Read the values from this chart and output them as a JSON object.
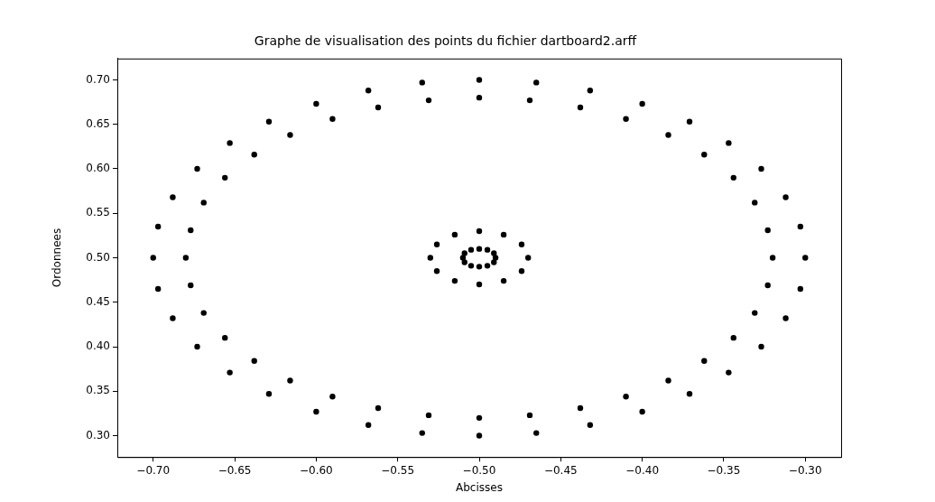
{
  "chart_data": {
    "type": "scatter",
    "title": "Graphe de visualisation des points du fichier dartboard2.arff",
    "xlabel": "Abcisses",
    "ylabel": "Ordonnees",
    "xlim": [
      -0.722,
      -0.278
    ],
    "ylim": [
      0.276,
      0.724
    ],
    "xticks": [
      {
        "value": -0.7,
        "label": "−0.70"
      },
      {
        "value": -0.65,
        "label": "−0.65"
      },
      {
        "value": -0.6,
        "label": "−0.60"
      },
      {
        "value": -0.55,
        "label": "−0.55"
      },
      {
        "value": -0.5,
        "label": "−0.50"
      },
      {
        "value": -0.45,
        "label": "−0.45"
      },
      {
        "value": -0.4,
        "label": "−0.40"
      },
      {
        "value": -0.35,
        "label": "−0.35"
      },
      {
        "value": -0.3,
        "label": "−0.30"
      }
    ],
    "yticks": [
      {
        "value": 0.3,
        "label": "0.30"
      },
      {
        "value": 0.35,
        "label": "0.35"
      },
      {
        "value": 0.4,
        "label": "0.40"
      },
      {
        "value": 0.45,
        "label": "0.45"
      },
      {
        "value": 0.5,
        "label": "0.50"
      },
      {
        "value": 0.55,
        "label": "0.55"
      },
      {
        "value": 0.6,
        "label": "0.60"
      },
      {
        "value": 0.65,
        "label": "0.65"
      },
      {
        "value": 0.7,
        "label": "0.70"
      }
    ],
    "grid": false,
    "legend": false,
    "marker": "circle",
    "series": [
      {
        "color": "#000000",
        "x": [
          -0.3,
          -0.303,
          -0.312,
          -0.327,
          -0.347,
          -0.371,
          -0.4,
          -0.432,
          -0.465,
          -0.5,
          -0.535,
          -0.568,
          -0.6,
          -0.629,
          -0.653,
          -0.673,
          -0.688,
          -0.697,
          -0.7,
          -0.697,
          -0.688,
          -0.673,
          -0.653,
          -0.629,
          -0.6,
          -0.568,
          -0.535,
          -0.5,
          -0.465,
          -0.432,
          -0.4,
          -0.371,
          -0.347,
          -0.327,
          -0.312,
          -0.303,
          -0.32,
          -0.323,
          -0.331,
          -0.344,
          -0.362,
          -0.384,
          -0.41,
          -0.438,
          -0.469,
          -0.5,
          -0.531,
          -0.562,
          -0.59,
          -0.616,
          -0.638,
          -0.656,
          -0.669,
          -0.677,
          -0.68,
          -0.677,
          -0.669,
          -0.656,
          -0.638,
          -0.616,
          -0.59,
          -0.562,
          -0.531,
          -0.5,
          -0.469,
          -0.438,
          -0.41,
          -0.384,
          -0.362,
          -0.344,
          -0.331,
          -0.323,
          -0.47,
          -0.474,
          -0.485,
          -0.5,
          -0.515,
          -0.526,
          -0.53,
          -0.526,
          -0.515,
          -0.5,
          -0.485,
          -0.474,
          -0.49,
          -0.491,
          -0.495,
          -0.5,
          -0.505,
          -0.509,
          -0.51,
          -0.509,
          -0.505,
          -0.5,
          -0.495,
          -0.491
        ],
        "values": [
          0.5,
          0.535,
          0.568,
          0.6,
          0.629,
          0.653,
          0.673,
          0.688,
          0.697,
          0.7,
          0.697,
          0.688,
          0.673,
          0.653,
          0.629,
          0.6,
          0.568,
          0.535,
          0.5,
          0.465,
          0.432,
          0.4,
          0.371,
          0.347,
          0.327,
          0.312,
          0.303,
          0.3,
          0.303,
          0.312,
          0.327,
          0.347,
          0.371,
          0.4,
          0.432,
          0.465,
          0.5,
          0.531,
          0.562,
          0.59,
          0.616,
          0.638,
          0.656,
          0.669,
          0.677,
          0.68,
          0.677,
          0.669,
          0.656,
          0.638,
          0.616,
          0.59,
          0.562,
          0.531,
          0.5,
          0.469,
          0.438,
          0.41,
          0.384,
          0.362,
          0.344,
          0.331,
          0.323,
          0.32,
          0.323,
          0.331,
          0.344,
          0.362,
          0.384,
          0.41,
          0.438,
          0.469,
          0.5,
          0.515,
          0.526,
          0.53,
          0.526,
          0.515,
          0.5,
          0.485,
          0.474,
          0.47,
          0.474,
          0.485,
          0.5,
          0.505,
          0.509,
          0.51,
          0.509,
          0.505,
          0.5,
          0.495,
          0.491,
          0.49,
          0.491,
          0.495
        ]
      }
    ]
  }
}
